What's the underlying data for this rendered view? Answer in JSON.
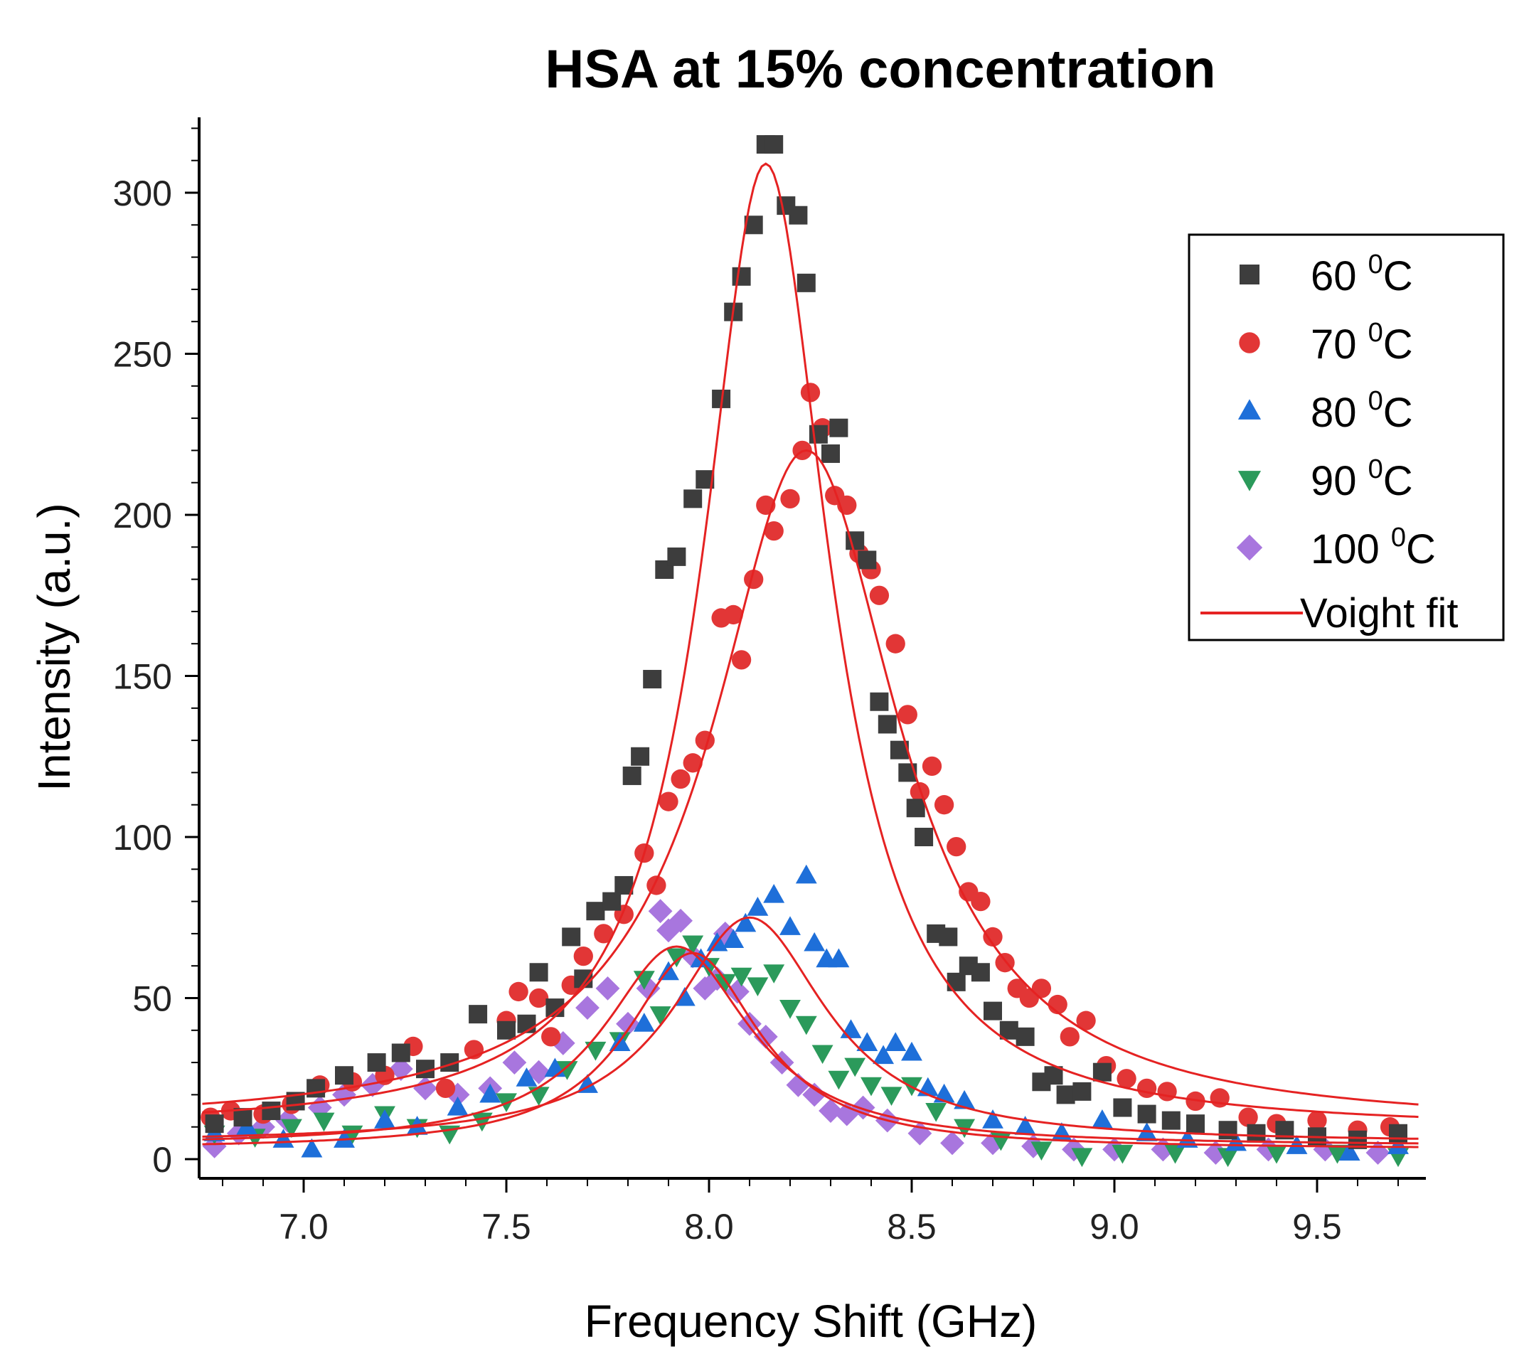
{
  "chart_data": {
    "type": "scatter",
    "title": "HSA at 15% concentration",
    "xlabel": "Frequency Shift (GHz)",
    "ylabel": "Intensity (a.u.)",
    "xlim": [
      6.75,
      9.75
    ],
    "ylim": [
      -7,
      325
    ],
    "xticks": [
      7.0,
      7.5,
      8.0,
      8.5,
      9.0,
      9.5
    ],
    "xtick_labels": [
      "7.0",
      "7.5",
      "8.0",
      "8.5",
      "9.0",
      "9.5"
    ],
    "yticks": [
      0,
      50,
      100,
      150,
      200,
      250,
      300
    ],
    "ytick_labels": [
      "0",
      "50",
      "100",
      "150",
      "200",
      "250",
      "300"
    ],
    "legend_position": "top-right",
    "fit": {
      "name": "Voight fit",
      "color": "#e52222"
    },
    "series": [
      {
        "name": "60 ⁰C",
        "label_main": "60 ",
        "label_sup": "0",
        "label_unit": "C",
        "marker": "square",
        "color": "#3d3d3d",
        "fit_params": {
          "center": 8.14,
          "amplitude": 300,
          "gamma": 0.19,
          "baseline": 9
        },
        "points": [
          [
            6.78,
            11
          ],
          [
            6.85,
            13
          ],
          [
            6.92,
            15
          ],
          [
            6.98,
            18
          ],
          [
            7.03,
            22
          ],
          [
            7.1,
            26
          ],
          [
            7.18,
            30
          ],
          [
            7.24,
            33
          ],
          [
            7.3,
            28
          ],
          [
            7.36,
            30
          ],
          [
            7.43,
            45
          ],
          [
            7.5,
            40
          ],
          [
            7.55,
            42
          ],
          [
            7.58,
            58
          ],
          [
            7.62,
            47
          ],
          [
            7.66,
            69
          ],
          [
            7.69,
            56
          ],
          [
            7.72,
            77
          ],
          [
            7.76,
            80
          ],
          [
            7.79,
            85
          ],
          [
            7.81,
            119
          ],
          [
            7.83,
            125
          ],
          [
            7.86,
            149
          ],
          [
            7.89,
            183
          ],
          [
            7.92,
            187
          ],
          [
            7.96,
            205
          ],
          [
            7.99,
            211
          ],
          [
            8.03,
            236
          ],
          [
            8.06,
            263
          ],
          [
            8.08,
            274
          ],
          [
            8.11,
            290
          ],
          [
            8.14,
            315
          ],
          [
            8.16,
            315
          ],
          [
            8.19,
            296
          ],
          [
            8.22,
            293
          ],
          [
            8.24,
            272
          ],
          [
            8.27,
            225
          ],
          [
            8.3,
            219
          ],
          [
            8.32,
            227
          ],
          [
            8.36,
            192
          ],
          [
            8.39,
            186
          ],
          [
            8.42,
            142
          ],
          [
            8.44,
            135
          ],
          [
            8.47,
            127
          ],
          [
            8.49,
            120
          ],
          [
            8.51,
            109
          ],
          [
            8.53,
            100
          ],
          [
            8.56,
            70
          ],
          [
            8.59,
            69
          ],
          [
            8.61,
            55
          ],
          [
            8.64,
            60
          ],
          [
            8.67,
            58
          ],
          [
            8.7,
            46
          ],
          [
            8.74,
            40
          ],
          [
            8.78,
            38
          ],
          [
            8.82,
            24
          ],
          [
            8.85,
            26
          ],
          [
            8.88,
            20
          ],
          [
            8.92,
            21
          ],
          [
            8.97,
            27
          ],
          [
            9.02,
            16
          ],
          [
            9.08,
            14
          ],
          [
            9.14,
            12
          ],
          [
            9.2,
            11
          ],
          [
            9.28,
            9
          ],
          [
            9.35,
            8
          ],
          [
            9.42,
            9
          ],
          [
            9.5,
            7
          ],
          [
            9.6,
            6
          ],
          [
            9.7,
            8
          ]
        ]
      },
      {
        "name": "70 ⁰C",
        "label_main": "70 ",
        "label_sup": "0",
        "label_unit": "C",
        "marker": "circle",
        "color": "#e23636",
        "fit_params": {
          "center": 8.24,
          "amplitude": 210,
          "gamma": 0.28,
          "baseline": 10
        },
        "points": [
          [
            6.77,
            13
          ],
          [
            6.82,
            15
          ],
          [
            6.9,
            14
          ],
          [
            6.97,
            17
          ],
          [
            7.04,
            23
          ],
          [
            7.12,
            24
          ],
          [
            7.2,
            26
          ],
          [
            7.27,
            35
          ],
          [
            7.35,
            22
          ],
          [
            7.42,
            34
          ],
          [
            7.5,
            43
          ],
          [
            7.53,
            52
          ],
          [
            7.58,
            50
          ],
          [
            7.61,
            38
          ],
          [
            7.66,
            54
          ],
          [
            7.69,
            63
          ],
          [
            7.74,
            70
          ],
          [
            7.79,
            76
          ],
          [
            7.84,
            95
          ],
          [
            7.87,
            85
          ],
          [
            7.9,
            111
          ],
          [
            7.93,
            118
          ],
          [
            7.96,
            123
          ],
          [
            7.99,
            130
          ],
          [
            8.03,
            168
          ],
          [
            8.06,
            169
          ],
          [
            8.08,
            155
          ],
          [
            8.11,
            180
          ],
          [
            8.14,
            203
          ],
          [
            8.16,
            195
          ],
          [
            8.2,
            205
          ],
          [
            8.23,
            220
          ],
          [
            8.25,
            238
          ],
          [
            8.28,
            227
          ],
          [
            8.31,
            206
          ],
          [
            8.34,
            203
          ],
          [
            8.37,
            188
          ],
          [
            8.4,
            183
          ],
          [
            8.42,
            175
          ],
          [
            8.46,
            160
          ],
          [
            8.49,
            138
          ],
          [
            8.52,
            114
          ],
          [
            8.55,
            122
          ],
          [
            8.58,
            110
          ],
          [
            8.61,
            97
          ],
          [
            8.64,
            83
          ],
          [
            8.67,
            80
          ],
          [
            8.7,
            69
          ],
          [
            8.73,
            61
          ],
          [
            8.76,
            53
          ],
          [
            8.79,
            50
          ],
          [
            8.82,
            53
          ],
          [
            8.86,
            48
          ],
          [
            8.89,
            38
          ],
          [
            8.93,
            43
          ],
          [
            8.98,
            29
          ],
          [
            9.03,
            25
          ],
          [
            9.08,
            22
          ],
          [
            9.13,
            21
          ],
          [
            9.2,
            18
          ],
          [
            9.26,
            19
          ],
          [
            9.33,
            13
          ],
          [
            9.4,
            11
          ],
          [
            9.5,
            12
          ],
          [
            9.6,
            9
          ],
          [
            9.68,
            10
          ]
        ]
      },
      {
        "name": "80 ⁰C",
        "label_main": "80 ",
        "label_sup": "0",
        "label_unit": "C",
        "marker": "triangle-up",
        "color": "#1e6fd9",
        "fit_params": {
          "center": 8.1,
          "amplitude": 70,
          "gamma": 0.23,
          "baseline": 5
        },
        "points": [
          [
            6.78,
            8
          ],
          [
            6.86,
            10
          ],
          [
            6.95,
            6
          ],
          [
            7.02,
            3
          ],
          [
            7.1,
            6
          ],
          [
            7.2,
            12
          ],
          [
            7.28,
            10
          ],
          [
            7.38,
            16
          ],
          [
            7.46,
            20
          ],
          [
            7.55,
            25
          ],
          [
            7.62,
            28
          ],
          [
            7.7,
            23
          ],
          [
            7.78,
            36
          ],
          [
            7.84,
            42
          ],
          [
            7.9,
            58
          ],
          [
            7.94,
            50
          ],
          [
            7.98,
            62
          ],
          [
            8.02,
            67
          ],
          [
            8.06,
            68
          ],
          [
            8.09,
            73
          ],
          [
            8.12,
            78
          ],
          [
            8.16,
            82
          ],
          [
            8.2,
            72
          ],
          [
            8.24,
            88
          ],
          [
            8.26,
            67
          ],
          [
            8.29,
            62
          ],
          [
            8.32,
            62
          ],
          [
            8.35,
            40
          ],
          [
            8.39,
            36
          ],
          [
            8.43,
            32
          ],
          [
            8.46,
            36
          ],
          [
            8.5,
            33
          ],
          [
            8.54,
            22
          ],
          [
            8.58,
            20
          ],
          [
            8.63,
            18
          ],
          [
            8.7,
            12
          ],
          [
            8.78,
            10
          ],
          [
            8.87,
            8
          ],
          [
            8.97,
            12
          ],
          [
            9.08,
            8
          ],
          [
            9.18,
            6
          ],
          [
            9.3,
            5
          ],
          [
            9.45,
            4
          ],
          [
            9.58,
            2
          ],
          [
            9.7,
            4
          ]
        ]
      },
      {
        "name": "90 ⁰C",
        "label_main": "90 ",
        "label_sup": "0",
        "label_unit": "C",
        "marker": "triangle-down",
        "color": "#2b9a5b",
        "fit_params": {
          "center": 7.96,
          "amplitude": 61,
          "gamma": 0.2,
          "baseline": 3
        },
        "points": [
          [
            6.78,
            8
          ],
          [
            6.88,
            7
          ],
          [
            6.97,
            10
          ],
          [
            7.05,
            12
          ],
          [
            7.12,
            8
          ],
          [
            7.2,
            14
          ],
          [
            7.28,
            10
          ],
          [
            7.36,
            8
          ],
          [
            7.44,
            12
          ],
          [
            7.5,
            18
          ],
          [
            7.58,
            20
          ],
          [
            7.65,
            28
          ],
          [
            7.72,
            34
          ],
          [
            7.78,
            37
          ],
          [
            7.84,
            56
          ],
          [
            7.88,
            45
          ],
          [
            7.92,
            63
          ],
          [
            7.96,
            67
          ],
          [
            8.0,
            60
          ],
          [
            8.04,
            55
          ],
          [
            8.08,
            57
          ],
          [
            8.12,
            54
          ],
          [
            8.16,
            58
          ],
          [
            8.2,
            47
          ],
          [
            8.24,
            42
          ],
          [
            8.28,
            33
          ],
          [
            8.32,
            25
          ],
          [
            8.36,
            29
          ],
          [
            8.4,
            23
          ],
          [
            8.45,
            20
          ],
          [
            8.5,
            23
          ],
          [
            8.56,
            15
          ],
          [
            8.63,
            10
          ],
          [
            8.72,
            6
          ],
          [
            8.82,
            3
          ],
          [
            8.92,
            1
          ],
          [
            9.02,
            2
          ],
          [
            9.15,
            2
          ],
          [
            9.28,
            1
          ],
          [
            9.4,
            2
          ],
          [
            9.55,
            2
          ],
          [
            9.7,
            1
          ]
        ]
      },
      {
        "name": "100 ⁰C",
        "label_main": "100 ",
        "label_sup": "0",
        "label_unit": "C",
        "marker": "diamond",
        "color": "#a876de",
        "fit_params": {
          "center": 7.92,
          "amplitude": 62,
          "gamma": 0.22,
          "baseline": 4
        },
        "points": [
          [
            6.78,
            4
          ],
          [
            6.84,
            8
          ],
          [
            6.9,
            10
          ],
          [
            6.96,
            12
          ],
          [
            7.04,
            16
          ],
          [
            7.1,
            20
          ],
          [
            7.17,
            23
          ],
          [
            7.24,
            28
          ],
          [
            7.3,
            22
          ],
          [
            7.38,
            20
          ],
          [
            7.46,
            22
          ],
          [
            7.52,
            30
          ],
          [
            7.58,
            27
          ],
          [
            7.64,
            36
          ],
          [
            7.7,
            47
          ],
          [
            7.75,
            53
          ],
          [
            7.8,
            42
          ],
          [
            7.85,
            53
          ],
          [
            7.88,
            77
          ],
          [
            7.9,
            71
          ],
          [
            7.93,
            74
          ],
          [
            7.96,
            63
          ],
          [
            7.99,
            53
          ],
          [
            8.02,
            56
          ],
          [
            8.04,
            70
          ],
          [
            8.07,
            52
          ],
          [
            8.1,
            42
          ],
          [
            8.14,
            38
          ],
          [
            8.18,
            30
          ],
          [
            8.22,
            23
          ],
          [
            8.26,
            20
          ],
          [
            8.3,
            15
          ],
          [
            8.34,
            14
          ],
          [
            8.38,
            16
          ],
          [
            8.44,
            12
          ],
          [
            8.52,
            8
          ],
          [
            8.6,
            5
          ],
          [
            8.7,
            5
          ],
          [
            8.8,
            4
          ],
          [
            8.9,
            3
          ],
          [
            9.0,
            3
          ],
          [
            9.12,
            3
          ],
          [
            9.25,
            2
          ],
          [
            9.38,
            3
          ],
          [
            9.52,
            3
          ],
          [
            9.65,
            2
          ]
        ]
      }
    ]
  }
}
